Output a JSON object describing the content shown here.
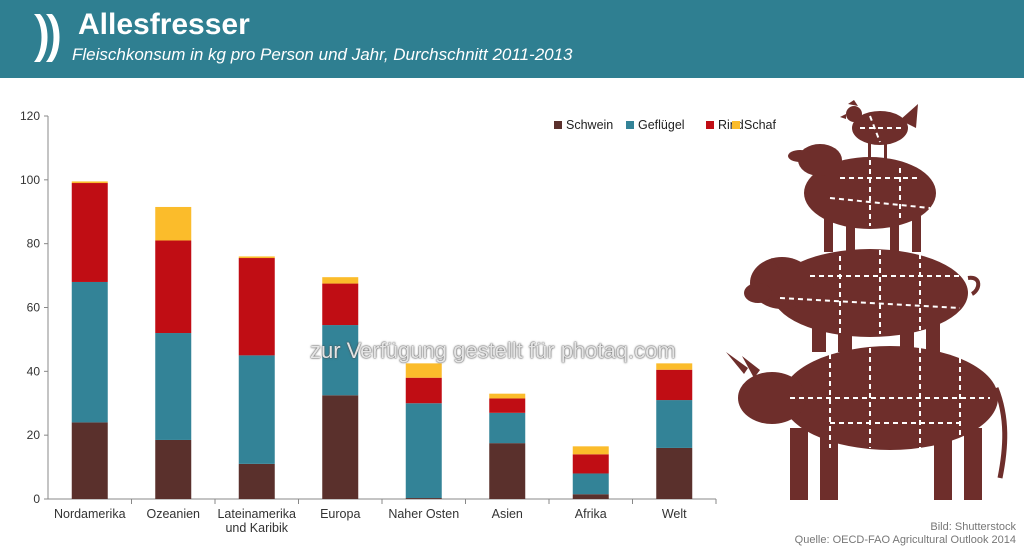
{
  "header": {
    "title": "Allesfresser",
    "subtitle": "Fleischkonsum in kg pro Person und Jahr, Durchschnitt 2011-2013"
  },
  "watermark": "zur Verfügung gestellt für photaq.com",
  "credits": {
    "image": "Bild: Shutterstock",
    "source": "Quelle: OECD-FAO Agricultural Outlook 2014"
  },
  "colors": {
    "header": "#2f7f91",
    "schwein": "#5a302c",
    "gefluegel": "#338397",
    "rind": "#c00d14",
    "schaf": "#fbbc2b",
    "animals": "#6e2e2b"
  },
  "chart_data": {
    "type": "bar",
    "stacked": true,
    "title": "",
    "xlabel": "",
    "ylabel": "",
    "ylim": [
      0,
      120
    ],
    "yticks": [
      0,
      20,
      40,
      60,
      80,
      100,
      120
    ],
    "grid": false,
    "legend_position": "top-right",
    "categories": [
      "Nordamerika",
      "Ozeanien",
      "Lateinamerika und Karibik",
      "Europa",
      "Naher Osten",
      "Asien",
      "Afrika",
      "Welt"
    ],
    "category_lines": [
      [
        "Nordamerika"
      ],
      [
        "Ozeanien"
      ],
      [
        "Lateinamerika",
        "und Karibik"
      ],
      [
        "Europa"
      ],
      [
        "Naher Osten"
      ],
      [
        "Asien"
      ],
      [
        "Afrika"
      ],
      [
        "Welt"
      ]
    ],
    "series": [
      {
        "name": "Schwein",
        "values": [
          24,
          18.5,
          11,
          32.5,
          0.3,
          17.5,
          1.5,
          16
        ]
      },
      {
        "name": "Geflügel",
        "values": [
          44,
          33.5,
          34,
          22,
          29.7,
          9.5,
          6.5,
          15
        ]
      },
      {
        "name": "Rind",
        "values": [
          31,
          29,
          30.5,
          13,
          8,
          4.5,
          6,
          9.5
        ]
      },
      {
        "name": "Schaf",
        "values": [
          0.5,
          10.5,
          0.5,
          2,
          4.5,
          1.5,
          2.5,
          2
        ]
      }
    ]
  }
}
